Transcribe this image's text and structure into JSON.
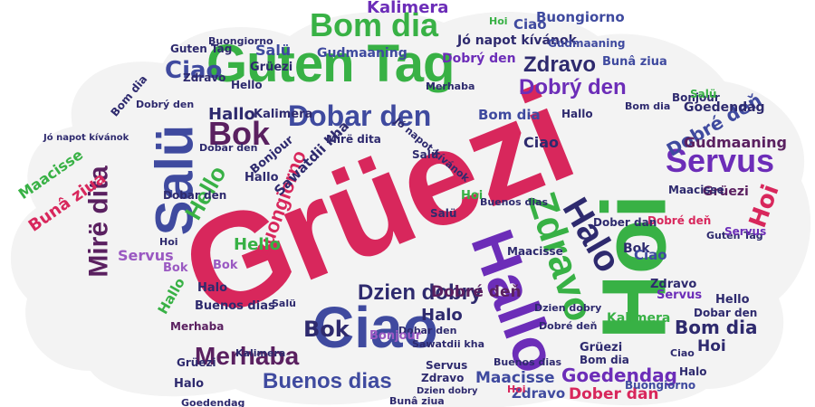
{
  "palette": {
    "pink": "#d8275c",
    "green": "#38b145",
    "blue": "#3f4a9f",
    "purple": "#6c2db8",
    "navy": "#2e2a6e",
    "plum": "#5a2060",
    "lilac": "#9a59c2",
    "grey": "#5a5a6a"
  },
  "background_color": "#ffffff",
  "cloud_color": "#f3f3f3",
  "words": [
    {
      "text": "Grüezi"
    },
    {
      "text": "Hoi"
    },
    {
      "text": "Guten Tag"
    },
    {
      "text": "Salü"
    },
    {
      "text": "Hallo"
    },
    {
      "text": "Ciao"
    },
    {
      "text": "Bom dia"
    },
    {
      "text": "Zdravo"
    },
    {
      "text": "Servus"
    },
    {
      "text": "Dobar den"
    },
    {
      "text": "Halo"
    },
    {
      "text": "Bok"
    },
    {
      "text": "Mirë dita"
    },
    {
      "text": "Merhaba"
    },
    {
      "text": "Buenos dias"
    },
    {
      "text": "Dzien dobry"
    },
    {
      "text": "Hello"
    },
    {
      "text": "Dobrý den"
    },
    {
      "text": "Zdravo"
    },
    {
      "text": "Buongiorno"
    },
    {
      "text": "Ciao"
    },
    {
      "text": "Hoi"
    },
    {
      "text": "Bok"
    },
    {
      "text": "Ciao"
    },
    {
      "text": "Bom dia"
    },
    {
      "text": "Bunâ ziua"
    },
    {
      "text": "Maacisse"
    },
    {
      "text": "Kalimera"
    },
    {
      "text": "Buongiorno"
    },
    {
      "text": "Gudmaaning"
    },
    {
      "text": "Jó napot kívánok"
    },
    {
      "text": "Dobré deň"
    },
    {
      "text": "Servus"
    },
    {
      "text": "Gudmaaning"
    },
    {
      "text": "Bonjour"
    },
    {
      "text": "Sawatdii kha"
    },
    {
      "text": "Hallo"
    },
    {
      "text": "Halo"
    },
    {
      "text": "Dobré deň"
    },
    {
      "text": "Goedendag"
    },
    {
      "text": "Maacisse"
    },
    {
      "text": "Dober dan"
    },
    {
      "text": "Zdravo"
    },
    {
      "text": "Buenos dias"
    },
    {
      "text": "Bom dia"
    },
    {
      "text": "Hoi"
    },
    {
      "text": "Grüezi"
    },
    {
      "text": "Hello"
    },
    {
      "text": "Bok"
    },
    {
      "text": "Merhaba"
    },
    {
      "text": "Hallo"
    },
    {
      "text": "Halo"
    },
    {
      "text": "Buenos dias"
    },
    {
      "text": "Bok"
    },
    {
      "text": "Bonjour"
    },
    {
      "text": "Goedendag"
    },
    {
      "text": "Maacisse"
    },
    {
      "text": "Dobar den"
    },
    {
      "text": "Ciao"
    },
    {
      "text": "Servus"
    },
    {
      "text": "Bom dia"
    },
    {
      "text": "Hoi"
    },
    {
      "text": "Grüezi"
    },
    {
      "text": "Kalimera"
    },
    {
      "text": "Salü"
    },
    {
      "text": "Guten Tag"
    },
    {
      "text": "Zdravo"
    },
    {
      "text": "Dobrý den"
    },
    {
      "text": "Mirë dita"
    },
    {
      "text": "Bunâ ziua"
    },
    {
      "text": "Salü"
    },
    {
      "text": "Servus"
    },
    {
      "text": "Dobar den"
    },
    {
      "text": "Hello"
    },
    {
      "text": "Dzien dobry"
    },
    {
      "text": "Dobré deň"
    },
    {
      "text": "Hoi"
    },
    {
      "text": "Grüezi"
    },
    {
      "text": "Dober dan"
    },
    {
      "text": "Bom dia"
    },
    {
      "text": "Gudmaaning"
    },
    {
      "text": "Kalimera"
    },
    {
      "text": "Buongiorno"
    },
    {
      "text": "Salü"
    },
    {
      "text": "Ciao"
    },
    {
      "text": "Halo"
    },
    {
      "text": "Bok"
    },
    {
      "text": "Hallo"
    },
    {
      "text": "Maacisse"
    },
    {
      "text": "Bunâ ziua"
    },
    {
      "text": "Zdravo"
    },
    {
      "text": "Jó napot kívánok"
    },
    {
      "text": "Dobar den"
    },
    {
      "text": "Hello"
    },
    {
      "text": "Merhaba"
    },
    {
      "text": "Halo"
    },
    {
      "text": "Bom dia"
    },
    {
      "text": "Guten Tag"
    },
    {
      "text": "Salü"
    },
    {
      "text": "Ciao"
    },
    {
      "text": "Servus"
    },
    {
      "text": "Dobré deň"
    },
    {
      "text": "Goedendag"
    },
    {
      "text": "Hoi"
    },
    {
      "text": "Zdravo"
    },
    {
      "text": "Grüezi"
    },
    {
      "text": "Buenos dias"
    },
    {
      "text": "Dzien dobry"
    },
    {
      "text": "Bonjour"
    },
    {
      "text": "Dobar den"
    },
    {
      "text": "Hallo"
    },
    {
      "text": "Kalimera"
    },
    {
      "text": "Hoi"
    },
    {
      "text": "Salü"
    },
    {
      "text": "Buongiorno"
    },
    {
      "text": "Jó napot kívánok"
    },
    {
      "text": "Sawatdii kha"
    },
    {
      "text": "Dobrý den"
    }
  ]
}
